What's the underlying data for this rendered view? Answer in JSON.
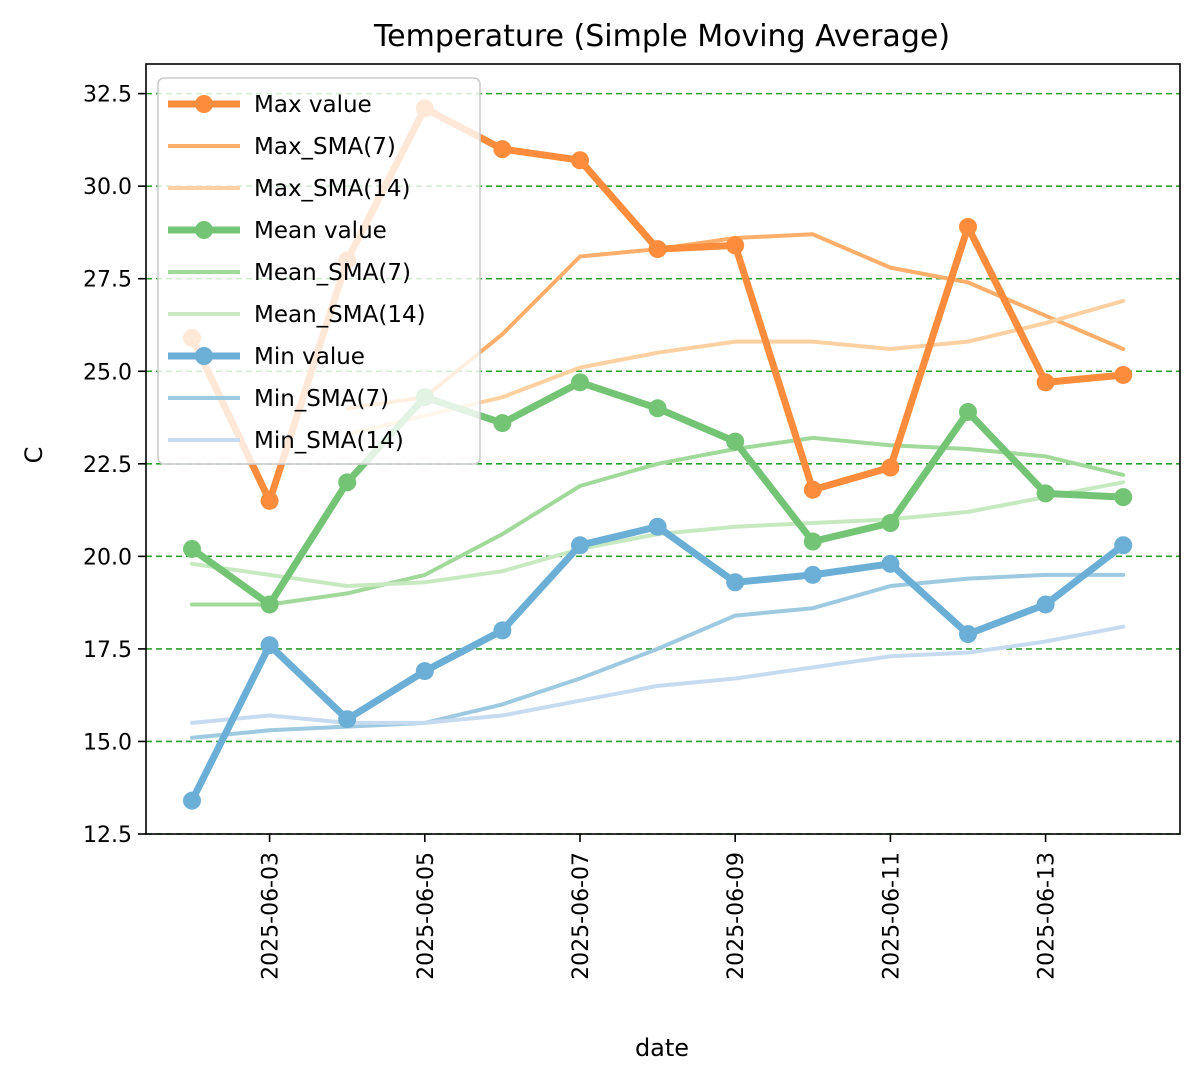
{
  "chart_data": {
    "type": "line",
    "title": "Temperature (Simple Moving Average)",
    "xlabel": "date",
    "ylabel": "C",
    "x": [
      "2025-06-02",
      "2025-06-03",
      "2025-06-04",
      "2025-06-05",
      "2025-06-06",
      "2025-06-07",
      "2025-06-08",
      "2025-06-09",
      "2025-06-10",
      "2025-06-11",
      "2025-06-12",
      "2025-06-13",
      "2025-06-14"
    ],
    "x_tick_labels": [
      "2025-06-03",
      "2025-06-05",
      "2025-06-07",
      "2025-06-09",
      "2025-06-11",
      "2025-06-13"
    ],
    "y_ticks": [
      "12.5",
      "15.0",
      "17.5",
      "20.0",
      "22.5",
      "25.0",
      "27.5",
      "30.0",
      "32.5"
    ],
    "ylim": [
      12.5,
      33.3
    ],
    "grid": "horizontal dashed",
    "legend_position": "upper-left",
    "series": [
      {
        "name": "Max value",
        "color": "#fd8d3c",
        "style": "bold-markers",
        "values": [
          25.9,
          21.5,
          28.0,
          32.1,
          31.0,
          30.7,
          28.3,
          28.4,
          21.8,
          22.4,
          28.9,
          24.7,
          24.9
        ]
      },
      {
        "name": "Max_SMA(7)",
        "color": "#fdae6b",
        "style": "line",
        "values": [
          null,
          null,
          24.0,
          24.3,
          26.0,
          28.1,
          28.3,
          28.6,
          28.7,
          27.8,
          27.4,
          26.5,
          25.6
        ]
      },
      {
        "name": "Max_SMA(14)",
        "color": "#fdd0a2",
        "style": "line",
        "values": [
          null,
          null,
          23.3,
          23.8,
          24.3,
          25.1,
          25.5,
          25.8,
          25.8,
          25.6,
          25.8,
          26.3,
          26.9
        ]
      },
      {
        "name": "Mean value",
        "color": "#74c476",
        "style": "bold-markers",
        "values": [
          20.2,
          18.7,
          22.0,
          24.3,
          23.6,
          24.7,
          24.0,
          23.1,
          20.4,
          20.9,
          23.9,
          21.7,
          21.6
        ]
      },
      {
        "name": "Mean_SMA(7)",
        "color": "#a1d99b",
        "style": "line",
        "values": [
          18.7,
          18.7,
          19.0,
          19.5,
          20.6,
          21.9,
          22.5,
          22.9,
          23.2,
          23.0,
          22.9,
          22.7,
          22.2
        ]
      },
      {
        "name": "Mean_SMA(14)",
        "color": "#c7e9c0",
        "style": "line",
        "values": [
          19.8,
          19.5,
          19.2,
          19.3,
          19.6,
          20.2,
          20.6,
          20.8,
          20.9,
          21.0,
          21.2,
          21.6,
          22.0
        ]
      },
      {
        "name": "Min value",
        "color": "#6baed6",
        "style": "bold-markers",
        "values": [
          13.4,
          17.6,
          15.6,
          16.9,
          18.0,
          20.3,
          20.8,
          19.3,
          19.5,
          19.8,
          17.9,
          18.7,
          20.3
        ]
      },
      {
        "name": "Min_SMA(7)",
        "color": "#9ecae1",
        "style": "line",
        "values": [
          15.1,
          15.3,
          15.4,
          15.5,
          16.0,
          16.7,
          17.5,
          18.4,
          18.6,
          19.2,
          19.4,
          19.5,
          19.5
        ]
      },
      {
        "name": "Min_SMA(14)",
        "color": "#c6dbef",
        "style": "line",
        "values": [
          15.5,
          15.7,
          15.5,
          15.5,
          15.7,
          16.1,
          16.5,
          16.7,
          17.0,
          17.3,
          17.4,
          17.7,
          18.1
        ]
      }
    ],
    "colors": {
      "grid": "#2ca02c",
      "axis": "#000000",
      "legend_border": "#cccccc"
    }
  }
}
